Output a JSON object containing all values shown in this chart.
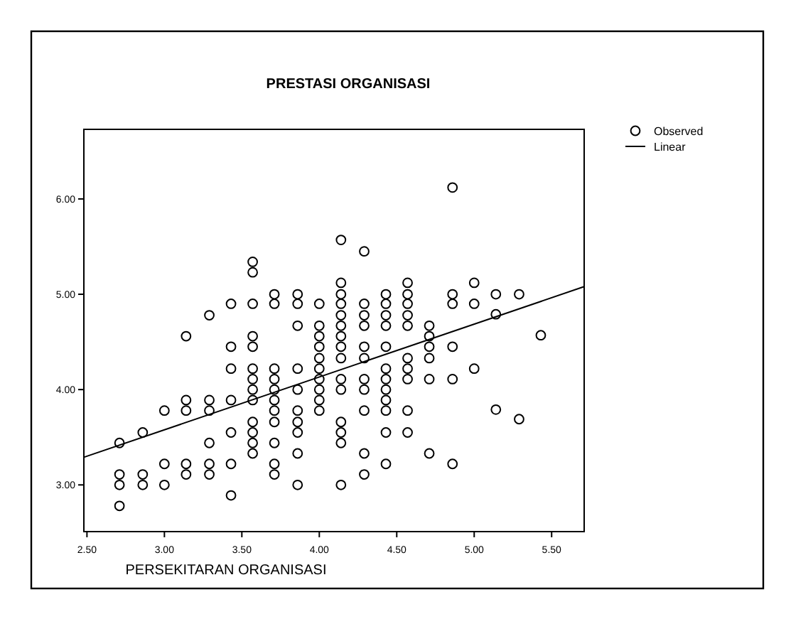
{
  "chart_data": {
    "type": "scatter",
    "title": "PRESTASI ORGANISASI",
    "xlabel": "PERSEKITARAN ORGANISASI",
    "xlim": [
      2.48,
      5.71
    ],
    "ylim": [
      2.51,
      6.73
    ],
    "xticks": [
      {
        "value": 2.5,
        "label": "2.50"
      },
      {
        "value": 3,
        "label": "3.00"
      },
      {
        "value": 3.5,
        "label": "3.50"
      },
      {
        "value": 4,
        "label": "4.00"
      },
      {
        "value": 4.5,
        "label": "4.50"
      },
      {
        "value": 5,
        "label": "5.00"
      },
      {
        "value": 5.5,
        "label": "5.50"
      }
    ],
    "yticks": [
      {
        "value": 3,
        "label": "3.00"
      },
      {
        "value": 4,
        "label": "4.00"
      },
      {
        "value": 5,
        "label": "5.00"
      },
      {
        "value": 6,
        "label": "6.00"
      }
    ],
    "legend": "top right",
    "grid": false,
    "series": [
      {
        "name": "Observed",
        "type": "scatter",
        "marker": "circle",
        "color": "#000000",
        "x": [
          2.71,
          2.71,
          2.71,
          2.71,
          2.86,
          2.86,
          2.86,
          3.0,
          3.0,
          3.0,
          3.14,
          3.14,
          3.14,
          3.14,
          3.14,
          3.29,
          3.29,
          3.29,
          3.29,
          3.29,
          3.29,
          3.43,
          3.43,
          3.43,
          3.43,
          3.43,
          3.43,
          3.43,
          3.57,
          3.57,
          3.57,
          3.57,
          3.57,
          3.57,
          3.57,
          3.57,
          3.57,
          3.57,
          3.57,
          3.57,
          3.57,
          3.71,
          3.71,
          3.71,
          3.71,
          3.71,
          3.71,
          3.71,
          3.71,
          3.71,
          3.71,
          3.71,
          3.86,
          3.86,
          3.86,
          3.86,
          3.86,
          3.86,
          3.86,
          3.86,
          3.86,
          3.86,
          4.0,
          4.0,
          4.0,
          4.0,
          4.0,
          4.0,
          4.0,
          4.0,
          4.0,
          4.0,
          4.14,
          4.14,
          4.14,
          4.14,
          4.14,
          4.14,
          4.14,
          4.14,
          4.14,
          4.14,
          4.14,
          4.14,
          4.14,
          4.14,
          4.14,
          4.29,
          4.29,
          4.29,
          4.29,
          4.29,
          4.29,
          4.29,
          4.29,
          4.29,
          4.29,
          4.29,
          4.43,
          4.43,
          4.43,
          4.43,
          4.43,
          4.43,
          4.43,
          4.43,
          4.43,
          4.43,
          4.43,
          4.43,
          4.57,
          4.57,
          4.57,
          4.57,
          4.57,
          4.57,
          4.57,
          4.57,
          4.57,
          4.57,
          4.71,
          4.71,
          4.71,
          4.71,
          4.71,
          4.71,
          4.86,
          4.86,
          4.86,
          4.86,
          4.86,
          4.86,
          5.0,
          5.0,
          5.0,
          5.14,
          5.14,
          5.14,
          5.29,
          5.29,
          5.43
        ],
        "values": [
          3.44,
          3.11,
          3.0,
          2.78,
          3.55,
          3.11,
          3.0,
          3.78,
          3.22,
          3.0,
          4.56,
          3.89,
          3.78,
          3.22,
          3.11,
          4.78,
          3.89,
          3.78,
          3.44,
          3.22,
          3.11,
          4.9,
          4.45,
          4.22,
          3.89,
          3.55,
          3.22,
          2.89,
          5.34,
          5.23,
          4.9,
          4.56,
          4.45,
          4.22,
          4.11,
          4.0,
          3.89,
          3.66,
          3.55,
          3.44,
          3.33,
          5.0,
          4.9,
          4.22,
          4.11,
          4.0,
          3.89,
          3.78,
          3.66,
          3.44,
          3.22,
          3.11,
          5.0,
          4.9,
          4.67,
          4.22,
          4.0,
          3.78,
          3.66,
          3.55,
          3.33,
          3.0,
          4.9,
          4.67,
          4.56,
          4.45,
          4.33,
          4.22,
          4.11,
          4.0,
          3.89,
          3.78,
          5.57,
          5.12,
          5.0,
          4.9,
          4.78,
          4.67,
          4.56,
          4.45,
          4.33,
          4.11,
          4.0,
          3.66,
          3.55,
          3.44,
          3.0,
          5.45,
          4.9,
          4.78,
          4.67,
          4.45,
          4.33,
          4.11,
          4.0,
          3.78,
          3.33,
          3.11,
          5.0,
          4.9,
          4.78,
          4.67,
          4.45,
          4.22,
          4.11,
          4.0,
          3.89,
          3.78,
          3.55,
          3.22,
          5.12,
          5.0,
          4.9,
          4.78,
          4.67,
          4.33,
          4.22,
          4.11,
          3.78,
          3.55,
          4.67,
          4.56,
          4.45,
          4.33,
          4.11,
          3.33,
          6.12,
          5.0,
          4.9,
          4.45,
          4.11,
          3.22,
          5.12,
          4.9,
          4.22,
          5.0,
          4.79,
          3.79,
          5.0,
          3.69,
          4.57
        ]
      },
      {
        "name": "Linear",
        "type": "line",
        "marker": "none",
        "line_style": "solid",
        "color": "#000000",
        "x": [
          2.48,
          5.71
        ],
        "values": [
          3.29,
          5.08
        ]
      }
    ]
  }
}
